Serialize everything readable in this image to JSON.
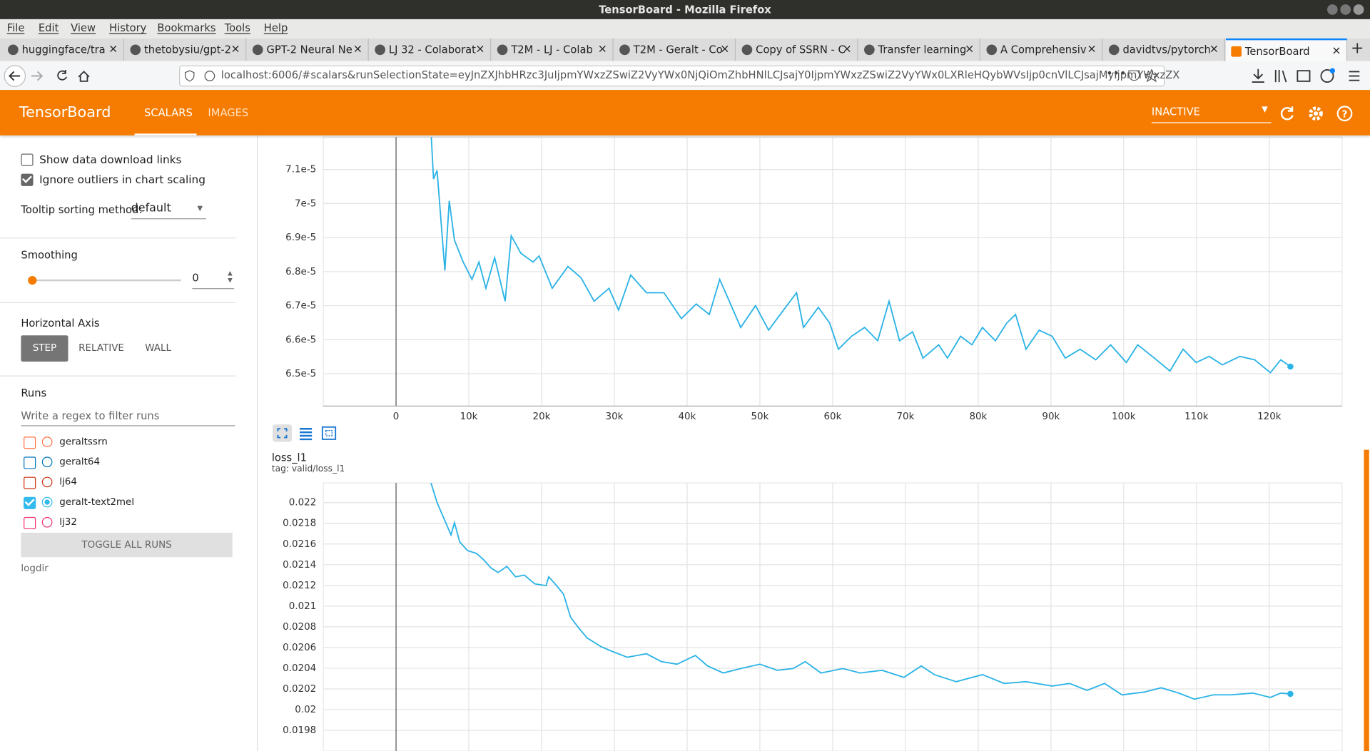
{
  "window": {
    "title": "TensorBoard - Mozilla Firefox"
  },
  "menu": [
    "File",
    "Edit",
    "View",
    "History",
    "Bookmarks",
    "Tools",
    "Help"
  ],
  "tabs": [
    "huggingface/tra",
    "thetobysiu/gpt-2",
    "GPT-2 Neural Ne",
    "LJ 32 - Colaborat",
    "T2M - LJ - Colab",
    "T2M - Geralt - Co",
    "Copy of SSRN - C",
    "Transfer learning",
    "A Comprehensiv",
    "davidtvs/pytorch",
    "TensorBoard"
  ],
  "url": "localhost:6006/#scalars&runSelectionState=eyJnZXJhbHRzc3JuIjpmYWxzZSwiZ2VyYWx0NjQiOmZhbHNlLCJsajY0IjpmYWxzZSwiZ2VyYWx0LXRleHQybWVsIjp0cnVlLCJsajMyIjpmYWxzZX",
  "header": {
    "brand": "TensorBoard",
    "nav": [
      "SCALARS",
      "IMAGES"
    ],
    "status": "INACTIVE"
  },
  "sidebar": {
    "options": [
      {
        "label": "Show data download links",
        "checked": false
      },
      {
        "label": "Ignore outliers in chart scaling",
        "checked": true
      }
    ],
    "tooltip_label": "Tooltip sorting method:",
    "tooltip_value": "default",
    "smoothing_label": "Smoothing",
    "smoothing_value": 0,
    "axis_label": "Horizontal Axis",
    "axis_buttons": [
      "STEP",
      "RELATIVE",
      "WALL"
    ],
    "runs_label": "Runs",
    "filter_placeholder": "Write a regex to filter runs",
    "runs": [
      {
        "name": "geraltssrn",
        "color": "#ff7043",
        "checked": false
      },
      {
        "name": "geralt64",
        "color": "#0077bb",
        "checked": false
      },
      {
        "name": "lj64",
        "color": "#cc3311",
        "checked": false
      },
      {
        "name": "geralt-text2mel",
        "color": "#33bbee",
        "checked": true
      },
      {
        "name": "lj32",
        "color": "#ee3377",
        "checked": false
      }
    ],
    "toggle": "TOGGLE ALL RUNS",
    "logdir": "logdir"
  },
  "chart_data": [
    {
      "type": "line",
      "color": "#2bb3e6",
      "grid": true,
      "xlim": [
        -10000,
        130000
      ],
      "xticks": [
        0,
        {
          "value": 10000,
          "label": "10k"
        },
        {
          "value": 20000,
          "label": "20k"
        },
        {
          "value": 30000,
          "label": "30k"
        },
        {
          "value": 40000,
          "label": "40k"
        },
        {
          "value": 50000,
          "label": "50k"
        },
        {
          "value": 60000,
          "label": "60k"
        },
        {
          "value": 70000,
          "label": "70k"
        },
        {
          "value": 80000,
          "label": "80k"
        },
        {
          "value": 90000,
          "label": "90k"
        },
        {
          "value": 100000,
          "label": "100k"
        },
        {
          "value": 110000,
          "label": "110k"
        },
        {
          "value": 120000,
          "label": "120k"
        }
      ],
      "ylim": [
        6.405e-05,
        7.195e-05
      ],
      "yticks": [
        {
          "value": 6.5e-05,
          "label": "6.5e-5"
        },
        {
          "value": 6.6e-05,
          "label": "6.6e-5"
        },
        {
          "value": 6.7e-05,
          "label": "6.7e-5"
        },
        {
          "value": 6.8e-05,
          "label": "6.8e-5"
        },
        {
          "value": 6.9e-05,
          "label": "6.9e-5"
        },
        {
          "value": 7e-05,
          "label": "7e-5"
        },
        {
          "value": 7.1e-05,
          "label": "7.1e-5"
        }
      ],
      "x": [
        4800,
        5150,
        5640,
        6710,
        7310,
        8030,
        9230,
        10430,
        11390,
        12350,
        13550,
        14990,
        15830,
        17150,
        18820,
        19660,
        21460,
        23620,
        25420,
        27220,
        29260,
        30580,
        32250,
        34410,
        36810,
        39210,
        41250,
        43050,
        44480,
        45800,
        47360,
        49400,
        51200,
        53240,
        55040,
        55990,
        58030,
        59590,
        60790,
        62590,
        64390,
        66190,
        67750,
        69190,
        70980,
        72420,
        74580,
        75780,
        77580,
        79140,
        80580,
        82370,
        83930,
        85130,
        86570,
        88370,
        90170,
        91970,
        94000,
        96160,
        98200,
        100360,
        101920,
        104200,
        106350,
        108150,
        109950,
        111750,
        113550,
        115950,
        117990,
        120150,
        121580,
        122900
      ],
      "values": [
        7.213e-05,
        7.072e-05,
        7.097e-05,
        6.803e-05,
        7.008e-05,
        6.892e-05,
        6.828e-05,
        6.777e-05,
        6.828e-05,
        6.751e-05,
        6.841e-05,
        6.713e-05,
        6.905e-05,
        6.854e-05,
        6.828e-05,
        6.846e-05,
        6.751e-05,
        6.815e-05,
        6.782e-05,
        6.713e-05,
        6.751e-05,
        6.687e-05,
        6.79e-05,
        6.738e-05,
        6.738e-05,
        6.662e-05,
        6.705e-05,
        6.674e-05,
        6.777e-05,
        6.713e-05,
        6.636e-05,
        6.7e-05,
        6.628e-05,
        6.687e-05,
        6.738e-05,
        6.636e-05,
        6.695e-05,
        6.649e-05,
        6.572e-05,
        6.61e-05,
        6.636e-05,
        6.597e-05,
        6.713e-05,
        6.597e-05,
        6.623e-05,
        6.546e-05,
        6.585e-05,
        6.546e-05,
        6.61e-05,
        6.585e-05,
        6.636e-05,
        6.597e-05,
        6.649e-05,
        6.674e-05,
        6.572e-05,
        6.628e-05,
        6.61e-05,
        6.546e-05,
        6.572e-05,
        6.541e-05,
        6.585e-05,
        6.533e-05,
        6.585e-05,
        6.546e-05,
        6.508e-05,
        6.572e-05,
        6.533e-05,
        6.551e-05,
        6.526e-05,
        6.551e-05,
        6.541e-05,
        6.503e-05,
        6.541e-05,
        6.521e-05
      ]
    },
    {
      "type": "line",
      "title": "loss_l1",
      "subtitle": "tag: valid/loss_l1",
      "color": "#2bb3e6",
      "grid": true,
      "xlim": [
        -10000,
        130000
      ],
      "ylim": [
        0.0196,
        0.02219
      ],
      "yticks": [
        0.0198,
        0.02,
        0.0202,
        0.0204,
        0.0206,
        0.0208,
        0.021,
        0.0212,
        0.0214,
        0.0216,
        0.0218,
        0.022
      ],
      "x": [
        4800,
        5640,
        6830,
        7550,
        8030,
        8750,
        9830,
        11030,
        11990,
        13070,
        14030,
        15230,
        16430,
        17630,
        19070,
        20620,
        20980,
        22060,
        23020,
        23980,
        25060,
        26260,
        28180,
        29620,
        31780,
        34410,
        36450,
        38610,
        41130,
        42810,
        44960,
        47360,
        50000,
        52400,
        54560,
        56230,
        58390,
        61390,
        63780,
        66790,
        69790,
        72180,
        73980,
        76980,
        80580,
        83570,
        86570,
        90170,
        92570,
        94960,
        97360,
        99760,
        102760,
        105150,
        107550,
        109710,
        112350,
        114750,
        117750,
        120150,
        121580,
        122900
      ],
      "values": [
        0.02219,
        0.022,
        0.021806,
        0.021688,
        0.021806,
        0.02162,
        0.021536,
        0.02151,
        0.021451,
        0.021367,
        0.021325,
        0.021384,
        0.021283,
        0.0213,
        0.021215,
        0.021198,
        0.021283,
        0.021198,
        0.021114,
        0.020894,
        0.020793,
        0.020692,
        0.020608,
        0.020565,
        0.020506,
        0.02054,
        0.020464,
        0.020439,
        0.020523,
        0.020422,
        0.020354,
        0.020397,
        0.020439,
        0.02038,
        0.020397,
        0.020464,
        0.020354,
        0.020397,
        0.020354,
        0.02038,
        0.020312,
        0.020422,
        0.020338,
        0.02027,
        0.020338,
        0.020253,
        0.02027,
        0.020228,
        0.020253,
        0.020186,
        0.020253,
        0.020143,
        0.020169,
        0.020211,
        0.02016,
        0.020101,
        0.020143,
        0.020143,
        0.02016,
        0.020118,
        0.02016,
        0.020152
      ]
    }
  ]
}
